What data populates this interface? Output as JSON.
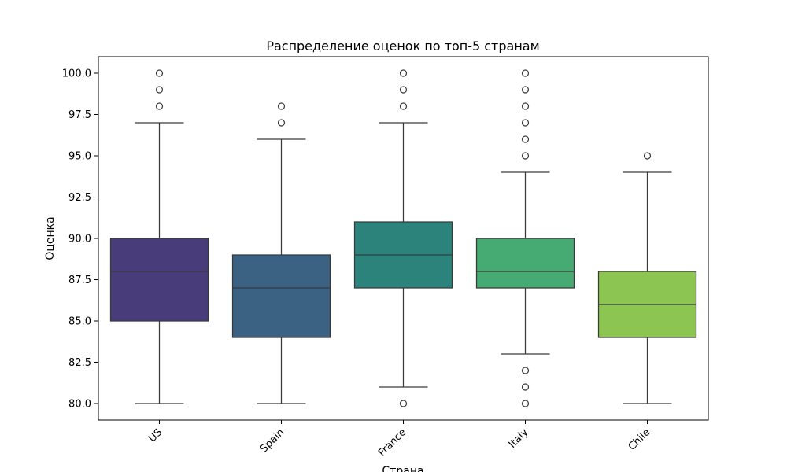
{
  "chart_data": {
    "type": "box",
    "title": "Распределение оценок по топ-5 странам",
    "xlabel": "Страна",
    "ylabel": "Оценка",
    "ylim": [
      79.0,
      101.0
    ],
    "yticks": [
      "80.0",
      "82.5",
      "85.0",
      "87.5",
      "90.0",
      "92.5",
      "95.0",
      "97.5",
      "100.0"
    ],
    "grid": false,
    "categories": [
      "US",
      "Spain",
      "France",
      "Italy",
      "Chile"
    ],
    "boxes": [
      {
        "name": "US",
        "whisker_low": 80,
        "q1": 85,
        "median": 88,
        "q3": 90,
        "whisker_high": 97,
        "outliers": [
          98,
          99,
          100
        ],
        "color": "#483d7a"
      },
      {
        "name": "Spain",
        "whisker_low": 80,
        "q1": 84,
        "median": 87,
        "q3": 89,
        "whisker_high": 96,
        "outliers": [
          97,
          98
        ],
        "color": "#3b6283"
      },
      {
        "name": "France",
        "whisker_low": 81,
        "q1": 87,
        "median": 89,
        "q3": 91,
        "whisker_high": 97,
        "outliers": [
          80,
          98,
          99,
          100
        ],
        "color": "#2c837c"
      },
      {
        "name": "Italy",
        "whisker_low": 83,
        "q1": 87,
        "median": 88,
        "q3": 90,
        "whisker_high": 94,
        "outliers": [
          80,
          81,
          82,
          95,
          96,
          97,
          98,
          99,
          100
        ],
        "color": "#46aa73"
      },
      {
        "name": "Chile",
        "whisker_low": 80,
        "q1": 84,
        "median": 86,
        "q3": 88,
        "whisker_high": 94,
        "outliers": [
          95
        ],
        "color": "#8dc553"
      }
    ]
  }
}
